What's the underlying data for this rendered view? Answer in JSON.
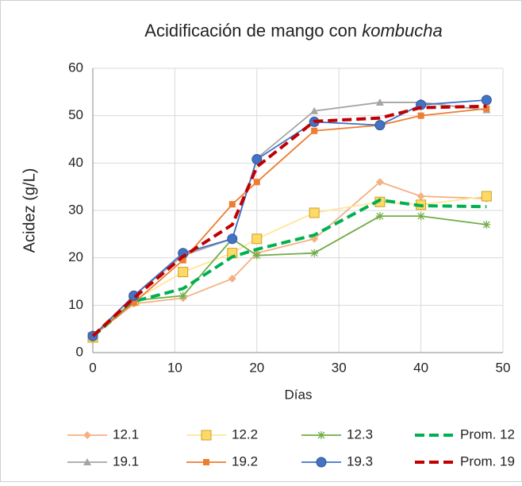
{
  "chart_data": {
    "type": "line",
    "title": [
      "Acidificación de mango con",
      "kombucha"
    ],
    "x_label": "Días",
    "y_label": "Acidez (g/L)",
    "x": [
      0,
      5,
      11,
      17,
      20,
      27,
      35,
      40,
      48
    ],
    "xlim": [
      0,
      50
    ],
    "xticks": [
      0,
      10,
      20,
      30,
      40,
      50
    ],
    "ylim": [
      0,
      60
    ],
    "yticks": [
      0,
      10,
      20,
      30,
      40,
      50,
      60
    ],
    "grid": true,
    "legend": "bottom",
    "series": [
      {
        "name": "12.1",
        "color": "#f4b183",
        "marker": "diamond",
        "values": [
          3.5,
          10.3,
          11.5,
          15.6,
          21,
          24,
          36,
          33,
          32.5
        ]
      },
      {
        "name": "12.2",
        "color": "#ffe699",
        "marker": "square-yellow",
        "values": [
          3.2,
          11,
          17,
          21,
          24,
          29.5,
          31.8,
          31.2,
          33
        ]
      },
      {
        "name": "12.3",
        "color": "#70ad47",
        "marker": "star",
        "values": [
          3.5,
          11,
          12,
          24,
          20.5,
          21,
          28.8,
          28.8,
          27
        ]
      },
      {
        "name": "Prom. 12",
        "color": "#00b050",
        "marker": "dash",
        "values": [
          3.4,
          10.8,
          13.5,
          20.2,
          21.8,
          24.8,
          32.2,
          31,
          30.8
        ]
      },
      {
        "name": "19.1",
        "color": "#a5a5a5",
        "marker": "triangle",
        "values": [
          3.5,
          12,
          20.5,
          24,
          41,
          51,
          52.8,
          52.8,
          51.2
        ]
      },
      {
        "name": "19.2",
        "color": "#ed7d31",
        "marker": "square",
        "values": [
          3.5,
          10.5,
          19.5,
          31.3,
          36,
          46.8,
          48,
          50,
          51.5
        ]
      },
      {
        "name": "19.3",
        "color": "#4472c4",
        "marker": "circle",
        "values": [
          3.5,
          12,
          21,
          24,
          40.8,
          48.7,
          48,
          52.3,
          53.3
        ]
      },
      {
        "name": "Prom. 19",
        "color": "#c00000",
        "marker": "dash",
        "values": [
          3.5,
          11.5,
          20.3,
          27,
          39.2,
          48.8,
          49.5,
          51.7,
          52
        ]
      }
    ]
  }
}
